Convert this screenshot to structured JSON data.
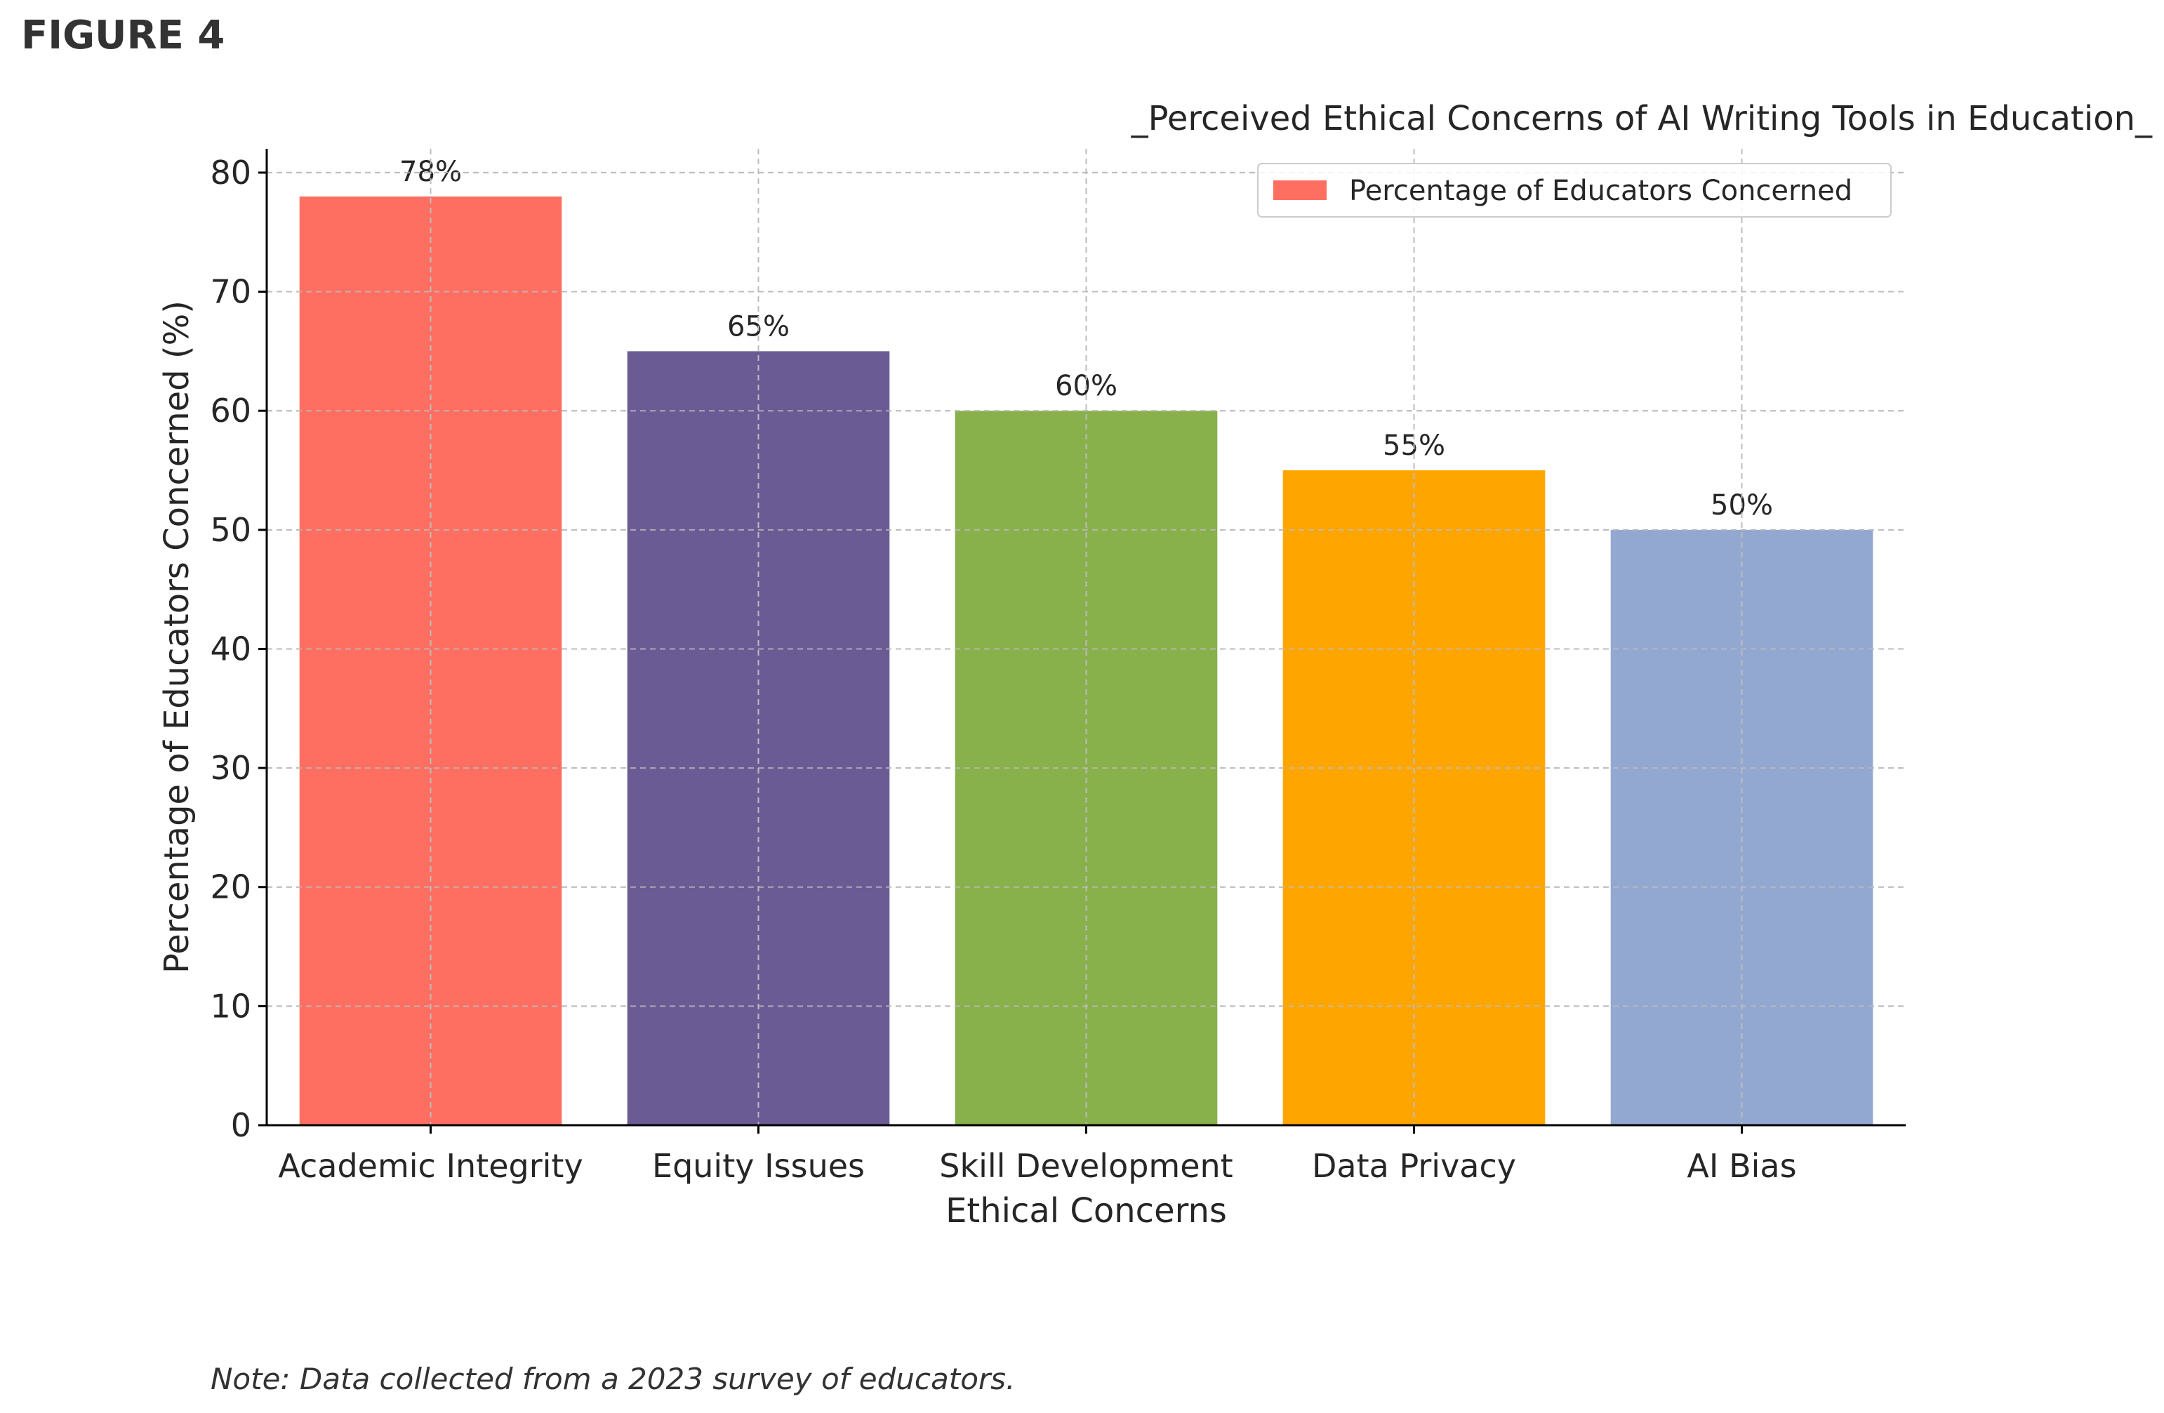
{
  "figure_label": "FIGURE 4",
  "note": "Note: Data collected from a 2023 survey of educators.",
  "chart_data": {
    "type": "bar",
    "title": "_Perceived Ethical Concerns of AI Writing Tools in Education_",
    "xlabel": "Ethical Concerns",
    "ylabel": "Percentage of Educators Concerned (%)",
    "categories": [
      "Academic Integrity",
      "Equity Issues",
      "Skill Development",
      "Data Privacy",
      "AI Bias"
    ],
    "series": [
      {
        "name": "Percentage of Educators Concerned",
        "values": [
          78,
          65,
          60,
          55,
          50
        ],
        "data_labels": [
          "78%",
          "65%",
          "60%",
          "55%",
          "50%"
        ],
        "colors": [
          "#FF6F61",
          "#6B5B95",
          "#88B04B",
          "#FFA500",
          "#92A8D1"
        ]
      }
    ],
    "ylim": [
      0,
      82
    ],
    "yticks": [
      0,
      10,
      20,
      30,
      40,
      50,
      60,
      70,
      80
    ],
    "grid": true,
    "legend_position": "top-right"
  }
}
